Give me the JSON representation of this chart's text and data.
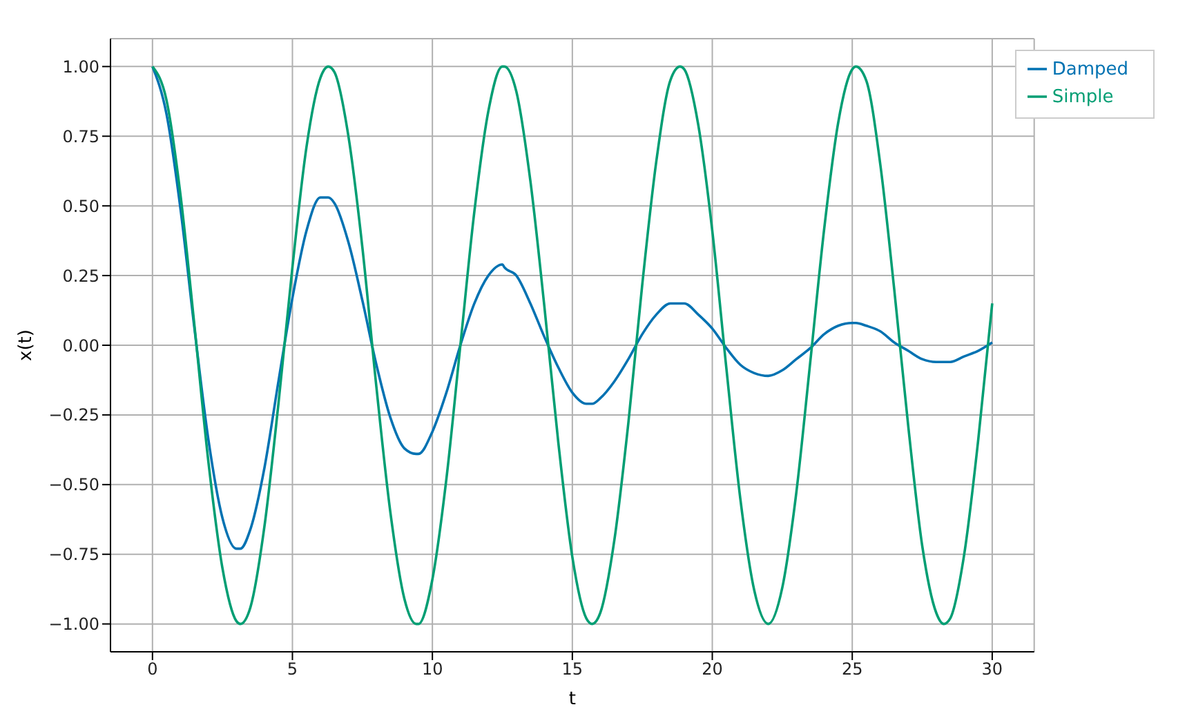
{
  "chart_data": {
    "type": "line",
    "xlabel": "t",
    "ylabel": "x(t)",
    "x": [
      0,
      0.5,
      1,
      1.5,
      2,
      2.5,
      3,
      3.14,
      3.5,
      4,
      4.5,
      5,
      5.5,
      6,
      6.28,
      6.5,
      7,
      7.5,
      8,
      8.5,
      9,
      9.42,
      9.5,
      10,
      10.5,
      11,
      11.5,
      12,
      12.5,
      12.57,
      13,
      13.5,
      14,
      14.5,
      15,
      15.5,
      15.71,
      16,
      16.5,
      17,
      17.5,
      18,
      18.5,
      18.85,
      19,
      19.5,
      20,
      20.5,
      21,
      21.5,
      22,
      22.5,
      23,
      23.5,
      24,
      24.5,
      25,
      25.13,
      25.5,
      26,
      26.5,
      27,
      27.5,
      28,
      28.27,
      28.5,
      29,
      29.5,
      30
    ],
    "series": [
      {
        "name": "Damped",
        "color": "#0072b2",
        "values": [
          1,
          0.83,
          0.49,
          0.06,
          -0.34,
          -0.62,
          -0.73,
          -0.73,
          -0.66,
          -0.44,
          -0.13,
          0.17,
          0.41,
          0.53,
          0.53,
          0.51,
          0.37,
          0.16,
          -0.07,
          -0.26,
          -0.37,
          -0.39,
          -0.39,
          -0.31,
          -0.17,
          0,
          0.15,
          0.25,
          0.29,
          0.28,
          0.25,
          0.15,
          0.03,
          -0.08,
          -0.17,
          -0.21,
          -0.21,
          -0.19,
          -0.13,
          -0.05,
          0.04,
          0.11,
          0.15,
          0.15,
          0.15,
          0.11,
          0.06,
          -0.01,
          -0.07,
          -0.1,
          -0.11,
          -0.09,
          -0.05,
          -0.01,
          0.04,
          0.07,
          0.08,
          0.08,
          0.07,
          0.05,
          0.01,
          -0.02,
          -0.05,
          -0.06,
          -0.06,
          -0.06,
          -0.04,
          -0.02,
          0.01
        ]
      },
      {
        "name": "Simple",
        "color": "#009e73",
        "values": [
          1,
          0.88,
          0.54,
          0.07,
          -0.42,
          -0.8,
          -0.99,
          -1,
          -0.94,
          -0.65,
          -0.21,
          0.28,
          0.71,
          0.96,
          1,
          0.98,
          0.75,
          0.35,
          -0.15,
          -0.6,
          -0.91,
          -1,
          -1,
          -0.84,
          -0.48,
          0,
          0.48,
          0.84,
          1,
          1,
          0.91,
          0.59,
          0.14,
          -0.35,
          -0.76,
          -0.98,
          -1,
          -0.96,
          -0.7,
          -0.28,
          0.22,
          0.66,
          0.95,
          1,
          0.99,
          0.79,
          0.41,
          -0.08,
          -0.55,
          -0.88,
          -1,
          -0.87,
          -0.53,
          -0.06,
          0.42,
          0.8,
          0.99,
          1,
          0.95,
          0.65,
          0.2,
          -0.29,
          -0.72,
          -0.96,
          -1,
          -0.98,
          -0.75,
          -0.34,
          0.15
        ]
      }
    ],
    "xlim": [
      -1.5,
      31.5
    ],
    "xticks": [
      0,
      5,
      10,
      15,
      20,
      25,
      30
    ],
    "ylim": [
      -1.1,
      1.1
    ],
    "yticks": [
      {
        "value": -1,
        "label": "−1.00"
      },
      {
        "value": -0.75,
        "label": "−0.75"
      },
      {
        "value": -0.5,
        "label": "−0.50"
      },
      {
        "value": -0.25,
        "label": "−0.25"
      },
      {
        "value": 0,
        "label": "0.00"
      },
      {
        "value": 0.25,
        "label": "0.25"
      },
      {
        "value": 0.5,
        "label": "0.50"
      },
      {
        "value": 0.75,
        "label": "0.75"
      },
      {
        "value": 1,
        "label": "1.00"
      }
    ],
    "grid": true,
    "legend": "top right",
    "marker": "none",
    "line_style": "solid"
  }
}
